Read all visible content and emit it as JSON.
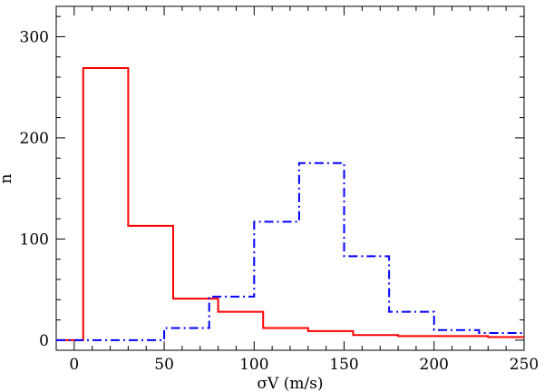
{
  "chart_data": {
    "type": "line",
    "title": "",
    "xlabel": "σV  (m/s)",
    "ylabel": "n",
    "xlim": [
      -10,
      250
    ],
    "ylim": [
      -10,
      330
    ],
    "x_ticks": [
      0,
      50,
      100,
      150,
      200,
      250
    ],
    "x_tick_labels": [
      "0",
      "50",
      "100",
      "150",
      "200",
      "250"
    ],
    "y_ticks": [
      0,
      100,
      200,
      300
    ],
    "y_tick_labels": [
      "0",
      "100",
      "200",
      "300"
    ],
    "grid": false,
    "legend": "none",
    "series": [
      {
        "color": "#ff0000",
        "style": "solid",
        "step_edges": [
          -10,
          5,
          30,
          55,
          80,
          105,
          130,
          155,
          180,
          205,
          230,
          250
        ],
        "values": [
          0,
          269,
          113,
          41,
          28,
          12,
          9,
          5,
          4,
          4,
          3
        ]
      },
      {
        "color": "#0000ff",
        "style": "dash-dot",
        "step_edges": [
          -10,
          50,
          75,
          100,
          125,
          150,
          175,
          200,
          225,
          250
        ],
        "values": [
          0,
          12,
          43,
          117,
          175,
          83,
          28,
          10,
          7
        ]
      }
    ]
  }
}
